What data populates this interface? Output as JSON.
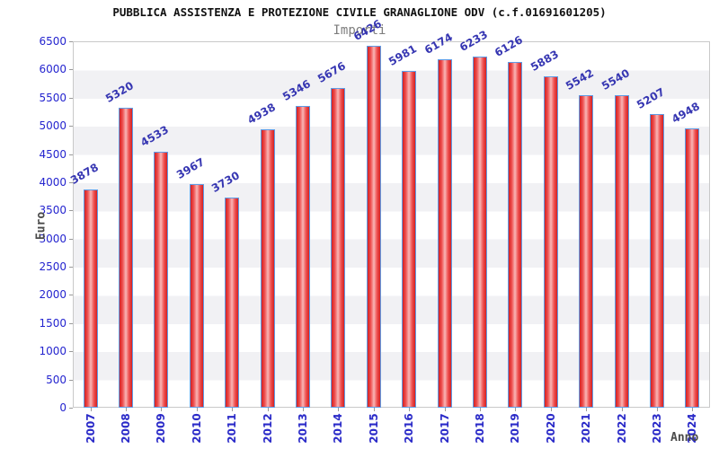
{
  "chart_data": {
    "type": "bar",
    "title": "PUBBLICA ASSISTENZA E PROTEZIONE CIVILE GRANAGLIONE ODV (c.f.01691601205)",
    "subtitle": "Importi",
    "xlabel": "Anno",
    "ylabel": "Euro",
    "categories": [
      "2007",
      "2008",
      "2009",
      "2010",
      "2011",
      "2012",
      "2013",
      "2014",
      "2015",
      "2016",
      "2017",
      "2018",
      "2019",
      "2020",
      "2021",
      "2022",
      "2023",
      "2024"
    ],
    "values": [
      3878,
      5320,
      4533,
      3967,
      3730,
      4938,
      5346,
      5676,
      6426,
      5981,
      6174,
      6233,
      6126,
      5883,
      5542,
      5540,
      5207,
      4948
    ],
    "ylim": [
      0,
      6500
    ],
    "ytick_step": 500,
    "yticks": [
      0,
      500,
      1000,
      1500,
      2000,
      2500,
      3000,
      3500,
      4000,
      4500,
      5000,
      5500,
      6000,
      6500
    ],
    "grid": "alternating horizontal bands every 500",
    "legend_position": "none",
    "colors": {
      "bar_edge": "#d32121",
      "bar_center": "#f8b6b6",
      "bar_border": "#5e9ce6",
      "band_gray": "#f1f1f4",
      "band_white": "#ffffff",
      "ytick_label": "#2424cf",
      "year_label": "#2a2ac8",
      "value_label": "#3636b2",
      "title": "#111111",
      "subtitle": "#7d7d7d",
      "axis_title": "#4a4a4a",
      "plot_border": "#c9c9c9"
    }
  }
}
